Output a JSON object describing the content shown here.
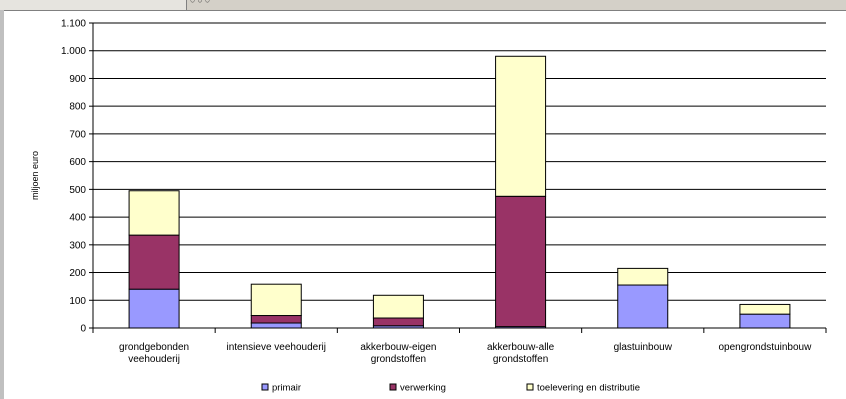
{
  "chart_data": {
    "type": "bar",
    "stacked": true,
    "ylabel": "miljoen euro",
    "xlabel": "",
    "ylim": [
      0,
      1100
    ],
    "yticks": [
      0,
      100,
      200,
      300,
      400,
      500,
      600,
      700,
      800,
      900,
      1000,
      1100
    ],
    "ytick_labels": [
      "0",
      "100",
      "200",
      "300",
      "400",
      "500",
      "600",
      "700",
      "800",
      "900",
      "1.000",
      "1.100"
    ],
    "grid": true,
    "legend_position": "bottom",
    "categories": [
      [
        "grondgebonden",
        "veehouderij"
      ],
      [
        "intensieve veehouderij"
      ],
      [
        "akkerbouw-eigen",
        "grondstoffen"
      ],
      [
        "akkerbouw-alle",
        "grondstoffen"
      ],
      [
        "glastuinbouw"
      ],
      [
        "opengrondstuinbouw"
      ]
    ],
    "series": [
      {
        "name": "primair",
        "color": "#9999ff",
        "values": [
          140,
          18,
          8,
          5,
          155,
          50
        ]
      },
      {
        "name": "verwerking",
        "color": "#993366",
        "values": [
          195,
          27,
          28,
          470,
          0,
          0
        ]
      },
      {
        "name": "toelevering en distributie",
        "color": "#ffffcc",
        "values": [
          160,
          113,
          82,
          505,
          60,
          35
        ]
      }
    ]
  }
}
